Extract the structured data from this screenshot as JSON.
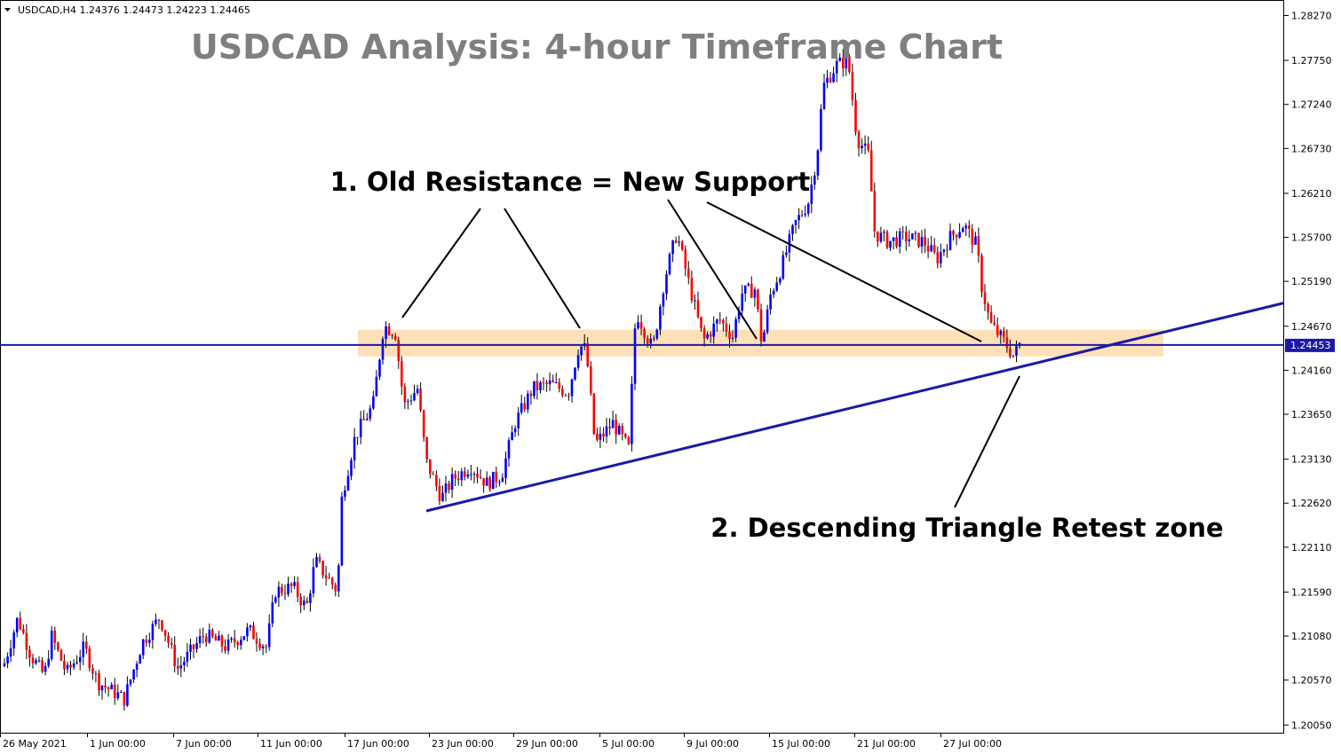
{
  "header": {
    "symbol_line": "USDCAD,H4  1.24376 1.24473 1.24223 1.24465"
  },
  "chart_data": {
    "type": "candlestick",
    "title": "USDCAD Analysis: 4-hour Timeframe Chart",
    "y_ticks": [
      "1.28270",
      "1.27750",
      "1.27240",
      "1.26730",
      "1.26210",
      "1.25700",
      "1.25190",
      "1.24670",
      "1.24160",
      "1.23650",
      "1.23130",
      "1.22620",
      "1.22110",
      "1.21590",
      "1.21080",
      "1.20570",
      "1.20050"
    ],
    "x_ticks": [
      "26 May 2021",
      "1 Jun 00:00",
      "7 Jun 00:00",
      "11 Jun 00:00",
      "17 Jun 00:00",
      "23 Jun 00:00",
      "29 Jun 00:00",
      "5 Jul 00:00",
      "9 Jul 00:00",
      "15 Jul 00:00",
      "21 Jul 00:00",
      "27 Jul 00:00"
    ],
    "current_price": "1.24453",
    "ylim": [
      1.1995,
      1.2845
    ],
    "anchors": [
      {
        "x": 0,
        "price": 1.2059
      },
      {
        "x": 20,
        "price": 1.2129
      },
      {
        "x": 35,
        "price": 1.2085
      },
      {
        "x": 50,
        "price": 1.2062
      },
      {
        "x": 58,
        "price": 1.2108
      },
      {
        "x": 75,
        "price": 1.2065
      },
      {
        "x": 95,
        "price": 1.2095
      },
      {
        "x": 110,
        "price": 1.2055
      },
      {
        "x": 140,
        "price": 1.2035
      },
      {
        "x": 160,
        "price": 1.21
      },
      {
        "x": 180,
        "price": 1.213
      },
      {
        "x": 200,
        "price": 1.207
      },
      {
        "x": 230,
        "price": 1.211
      },
      {
        "x": 255,
        "price": 1.2095
      },
      {
        "x": 280,
        "price": 1.2115
      },
      {
        "x": 300,
        "price": 1.2095
      },
      {
        "x": 310,
        "price": 1.216
      },
      {
        "x": 330,
        "price": 1.2165
      },
      {
        "x": 345,
        "price": 1.214
      },
      {
        "x": 355,
        "price": 1.2195
      },
      {
        "x": 380,
        "price": 1.216
      },
      {
        "x": 385,
        "price": 1.227
      },
      {
        "x": 400,
        "price": 1.234
      },
      {
        "x": 420,
        "price": 1.2375
      },
      {
        "x": 432,
        "price": 1.2468
      },
      {
        "x": 445,
        "price": 1.246
      },
      {
        "x": 455,
        "price": 1.2375
      },
      {
        "x": 470,
        "price": 1.2395
      },
      {
        "x": 480,
        "price": 1.231
      },
      {
        "x": 497,
        "price": 1.2268
      },
      {
        "x": 510,
        "price": 1.229
      },
      {
        "x": 530,
        "price": 1.2305
      },
      {
        "x": 548,
        "price": 1.2285
      },
      {
        "x": 565,
        "price": 1.2295
      },
      {
        "x": 580,
        "price": 1.2355
      },
      {
        "x": 600,
        "price": 1.2395
      },
      {
        "x": 620,
        "price": 1.24
      },
      {
        "x": 640,
        "price": 1.239
      },
      {
        "x": 652,
        "price": 1.2445
      },
      {
        "x": 660,
        "price": 1.244
      },
      {
        "x": 670,
        "price": 1.233
      },
      {
        "x": 690,
        "price": 1.2355
      },
      {
        "x": 708,
        "price": 1.2325
      },
      {
        "x": 716,
        "price": 1.2485
      },
      {
        "x": 735,
        "price": 1.244
      },
      {
        "x": 748,
        "price": 1.252
      },
      {
        "x": 762,
        "price": 1.2575
      },
      {
        "x": 775,
        "price": 1.252
      },
      {
        "x": 792,
        "price": 1.245
      },
      {
        "x": 810,
        "price": 1.2475
      },
      {
        "x": 825,
        "price": 1.2455
      },
      {
        "x": 835,
        "price": 1.2505
      },
      {
        "x": 850,
        "price": 1.251
      },
      {
        "x": 858,
        "price": 1.2445
      },
      {
        "x": 868,
        "price": 1.2505
      },
      {
        "x": 880,
        "price": 1.2535
      },
      {
        "x": 895,
        "price": 1.2585
      },
      {
        "x": 910,
        "price": 1.261
      },
      {
        "x": 920,
        "price": 1.2665
      },
      {
        "x": 927,
        "price": 1.2745
      },
      {
        "x": 942,
        "price": 1.277
      },
      {
        "x": 955,
        "price": 1.2775
      },
      {
        "x": 965,
        "price": 1.2685
      },
      {
        "x": 978,
        "price": 1.2665
      },
      {
        "x": 985,
        "price": 1.2575
      },
      {
        "x": 1000,
        "price": 1.2565
      },
      {
        "x": 1020,
        "price": 1.257
      },
      {
        "x": 1040,
        "price": 1.2565
      },
      {
        "x": 1055,
        "price": 1.2545
      },
      {
        "x": 1070,
        "price": 1.257
      },
      {
        "x": 1085,
        "price": 1.2585
      },
      {
        "x": 1100,
        "price": 1.256
      },
      {
        "x": 1105,
        "price": 1.2515
      },
      {
        "x": 1115,
        "price": 1.247
      },
      {
        "x": 1130,
        "price": 1.245
      },
      {
        "x": 1142,
        "price": 1.2432
      },
      {
        "x": 1148,
        "price": 1.2446
      }
    ],
    "resistance_zone": {
      "from": 1.2432,
      "to": 1.2463
    },
    "horizontal_line": 1.24453,
    "trendline": {
      "from": {
        "x": 480,
        "price": 1.2253
      },
      "to": {
        "x": 1446,
        "price": 1.2494
      }
    },
    "annotations": [
      {
        "text": "1. Old Resistance = New Support"
      },
      {
        "text": "2. Descending Triangle Retest zone"
      }
    ]
  },
  "colors": {
    "bull_candle": "#0000ff",
    "bear_candle": "#ff0000",
    "zone_fill": "#fde0b8",
    "trendline": "#1a1aa6",
    "hline": "#1a1aa6",
    "price_tag": "#1a1aa6",
    "title_gray": "#7f7f7f"
  }
}
